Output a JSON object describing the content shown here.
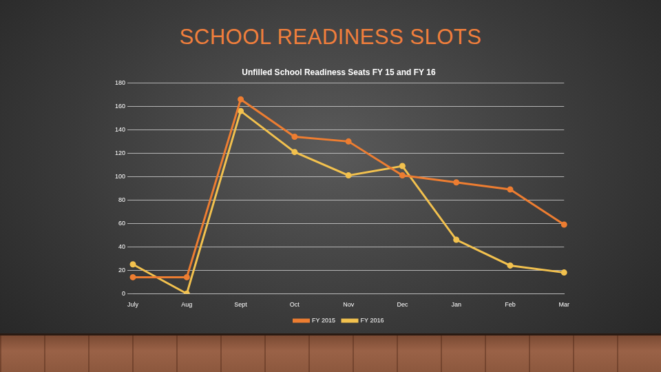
{
  "heading": "SCHOOL READINESS SLOTS",
  "chart_data": {
    "type": "line",
    "title": "Unfilled School Readiness Seats FY 15 and FY 16",
    "categories": [
      "July",
      "Aug",
      "Sept",
      "Oct",
      "Nov",
      "Dec",
      "Jan",
      "Feb",
      "Mar"
    ],
    "series": [
      {
        "name": "FY 2015",
        "color": "#ed7d31",
        "marker": "circle",
        "values": [
          14,
          14,
          166,
          134,
          130,
          101,
          95,
          89,
          59
        ]
      },
      {
        "name": "FY 2016",
        "color": "#f2c14e",
        "marker": "circle",
        "values": [
          25,
          0,
          156,
          121,
          101,
          109,
          46,
          24,
          18
        ]
      }
    ],
    "ylim": [
      0,
      180
    ],
    "yticks": [
      0,
      20,
      40,
      60,
      80,
      100,
      120,
      140,
      160,
      180
    ],
    "grid": true,
    "legend": "bottom"
  }
}
